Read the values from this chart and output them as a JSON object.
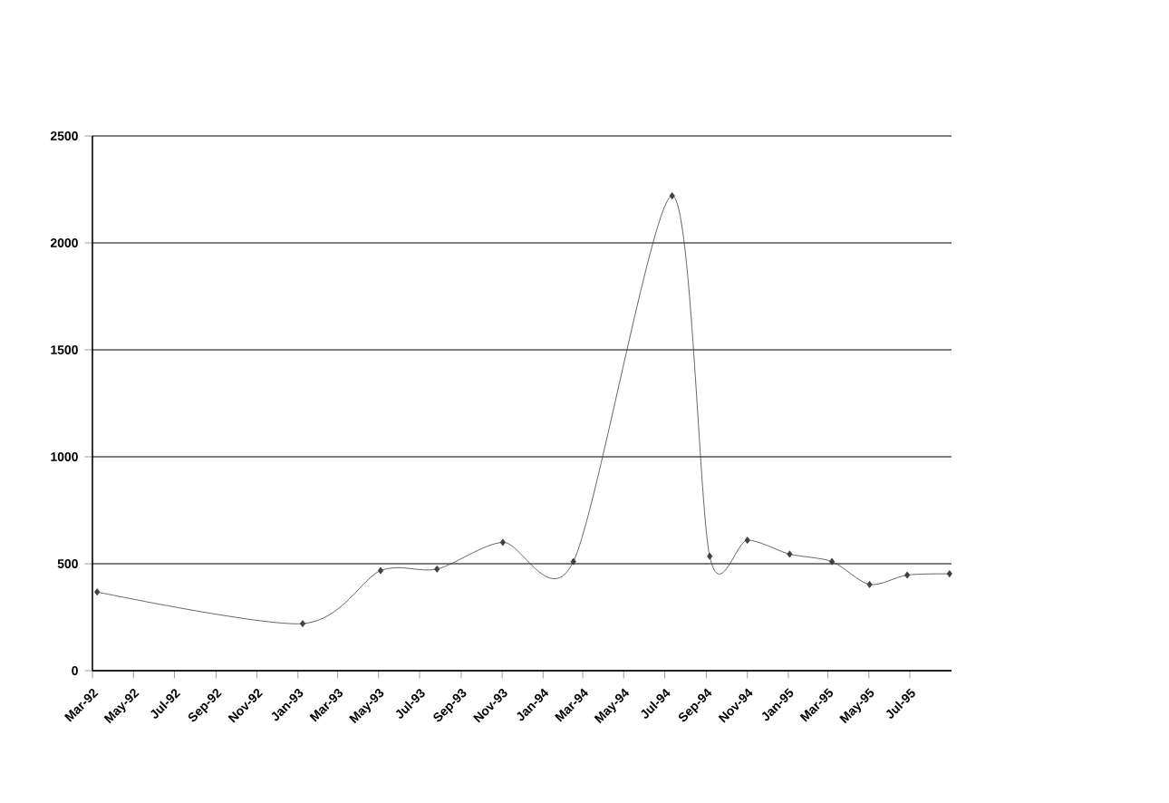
{
  "chart_data": {
    "type": "line",
    "x": [
      "1992-03-08",
      "1993-01-08",
      "1993-05-04",
      "1993-07-27",
      "1993-11-02",
      "1994-02-15",
      "1994-07-12",
      "1994-09-06",
      "1994-11-01",
      "1995-01-03",
      "1995-03-07",
      "1995-05-02",
      "1995-06-27",
      "1995-08-29"
    ],
    "series": [
      {
        "color": "#404040",
        "values": [
          368,
          220,
          468,
          475,
          600,
          510,
          2220,
          535,
          610,
          545,
          510,
          403,
          447,
          453
        ]
      }
    ],
    "xlim": [
      "1992-03-01",
      "1995-09-01"
    ],
    "xticks": [
      {
        "value": "1992-03-01",
        "label": "Mar-92"
      },
      {
        "value": "1992-05-01",
        "label": "May-92"
      },
      {
        "value": "1992-07-01",
        "label": "Jul-92"
      },
      {
        "value": "1992-09-01",
        "label": "Sep-92"
      },
      {
        "value": "1992-11-01",
        "label": "Nov-92"
      },
      {
        "value": "1993-01-01",
        "label": "Jan-93"
      },
      {
        "value": "1993-03-01",
        "label": "Mar-93"
      },
      {
        "value": "1993-05-01",
        "label": "May-93"
      },
      {
        "value": "1993-07-01",
        "label": "Jul-93"
      },
      {
        "value": "1993-09-01",
        "label": "Sep-93"
      },
      {
        "value": "1993-11-01",
        "label": "Nov-93"
      },
      {
        "value": "1994-01-01",
        "label": "Jan-94"
      },
      {
        "value": "1994-03-01",
        "label": "Mar-94"
      },
      {
        "value": "1994-05-01",
        "label": "May-94"
      },
      {
        "value": "1994-07-01",
        "label": "Jul-94"
      },
      {
        "value": "1994-09-01",
        "label": "Sep-94"
      },
      {
        "value": "1994-11-01",
        "label": "Nov-94"
      },
      {
        "value": "1995-01-01",
        "label": "Jan-95"
      },
      {
        "value": "1995-03-01",
        "label": "Mar-95"
      },
      {
        "value": "1995-05-01",
        "label": "May-95"
      },
      {
        "value": "1995-07-01",
        "label": "Jul-95"
      }
    ],
    "ylim": [
      0,
      2500
    ],
    "yticks": [
      0,
      500,
      1000,
      1500,
      2000,
      2500
    ],
    "grid": "y",
    "marker": "diamond",
    "line_style": "solid"
  }
}
